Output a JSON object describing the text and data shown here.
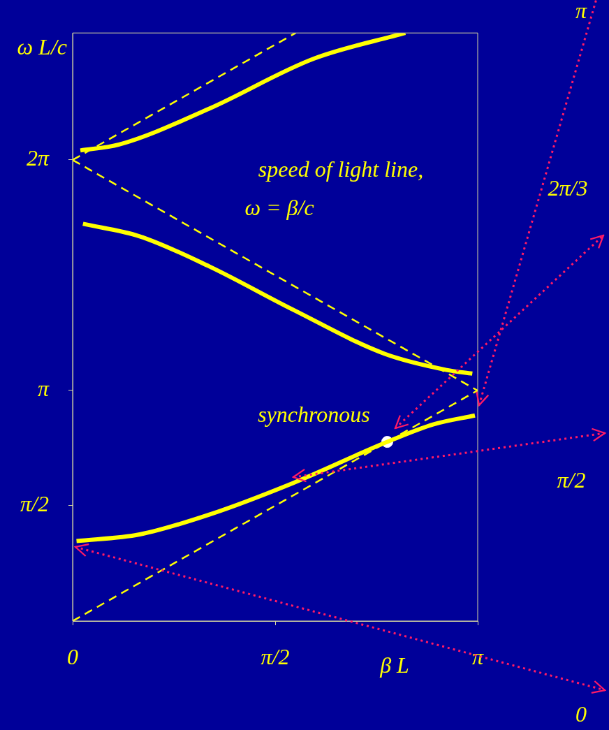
{
  "chart_data": {
    "type": "line",
    "xlabel": "β L",
    "ylabel": "ω L/c",
    "xlim": [
      0,
      3.1416
    ],
    "ylim": [
      0,
      8.01
    ],
    "xticks": [
      0,
      {
        "value": 1.5708,
        "label": "π/2"
      },
      {
        "value": 3.1416,
        "label": "π"
      }
    ],
    "yticks": [
      {
        "value": 1.5708,
        "label": "π/2"
      },
      {
        "value": 3.1416,
        "label": "π"
      },
      {
        "value": 6.2832,
        "label": "2π"
      }
    ],
    "grid": false,
    "legend": false,
    "series": [
      {
        "color": "#ffff00",
        "line_style": "solid",
        "marker": "none",
        "x": [
          0.03,
          0.52,
          1.06,
          1.71,
          2.44,
          2.8,
          3.12
        ],
        "values": [
          1.09,
          1.18,
          1.45,
          1.88,
          2.44,
          2.68,
          2.8
        ]
      },
      {
        "color": "#ffff00",
        "line_style": "solid",
        "marker": "none",
        "x": [
          0.08,
          0.52,
          1.06,
          1.71,
          2.42,
          2.9,
          3.1
        ],
        "values": [
          5.41,
          5.24,
          4.83,
          4.24,
          3.64,
          3.42,
          3.37
        ]
      },
      {
        "color": "#ffff00",
        "line_style": "solid",
        "marker": "none",
        "x": [
          0.06,
          0.36,
          1.06,
          1.87,
          2.58
        ],
        "values": [
          6.41,
          6.49,
          6.98,
          7.66,
          8.01
        ]
      },
      {
        "color": "#ffff00",
        "line_style": "dashed",
        "marker": "none",
        "x": [
          0,
          3.14
        ],
        "values": [
          0,
          3.14
        ]
      },
      {
        "color": "#ffff00",
        "line_style": "dashed",
        "marker": "none",
        "x": [
          0,
          3.14
        ],
        "values": [
          6.28,
          3.14
        ]
      },
      {
        "color": "#ffff00",
        "line_style": "dashed",
        "marker": "none",
        "x": [
          0,
          1.73
        ],
        "values": [
          6.28,
          8.01
        ]
      },
      {
        "type": "scatter",
        "color": "#ffffff",
        "marker": "circle",
        "x": [
          2.44
        ],
        "values": [
          2.44
        ]
      }
    ],
    "annotations": [
      "speed of light line,",
      "ω = β/c",
      {
        "text": "synchronous",
        "x": 2.44,
        "y": 2.44
      },
      "0",
      "π/2",
      "2π/3",
      "π"
    ]
  }
}
